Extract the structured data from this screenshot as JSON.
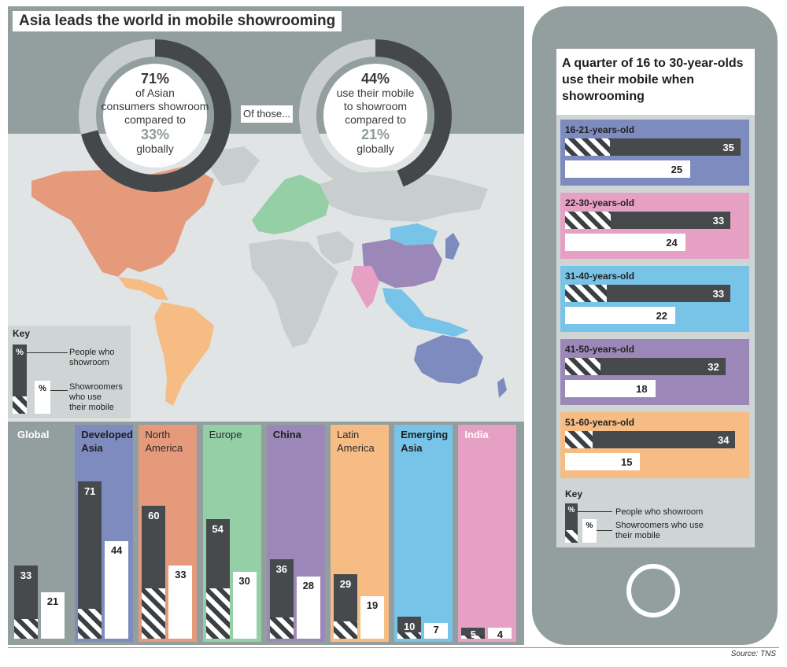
{
  "title": "Asia leads the world in mobile showrooming",
  "donut1": {
    "lines": [
      "of Asian",
      "consumers showroom",
      "compared to"
    ],
    "big": "71%",
    "compare": "33%",
    "tail": "globally",
    "value": 71,
    "compare_value": 33
  },
  "donut2": {
    "lines": [
      "use their mobile",
      "to showroom",
      "compared to"
    ],
    "big": "44%",
    "compare": "21%",
    "tail": "globally",
    "value": 44,
    "compare_value": 21
  },
  "of_those": "Of those...",
  "key_left": {
    "title": "Key",
    "pct": "%",
    "people": "People who",
    "people2": "showroom",
    "users": "Showroomers",
    "users2": "who use",
    "users3": "their mobile"
  },
  "phone_title": "A quarter of 16 to 30-year-olds use their mobile when showrooming",
  "key_right": {
    "title": "Key",
    "pct": "%",
    "people": "People who showroom",
    "users": "Showroomers who use",
    "users2": "their mobile"
  },
  "source": "Source: TNS",
  "colors": {
    "global": "#929f9e",
    "developed_asia": "#7d8bbf",
    "north_america": "#e59a7c",
    "europe": "#94cfa6",
    "china": "#9b88b8",
    "latin_america": "#f6bc84",
    "emerging_asia": "#78c3e8",
    "india": "#e6a0c4"
  },
  "chart_data": [
    {
      "type": "bar",
      "categories": [
        "Global",
        "Developed Asia",
        "North America",
        "Europe",
        "China",
        "Latin America",
        "Emerging Asia",
        "India"
      ],
      "series": [
        {
          "name": "People who showroom",
          "values": [
            33,
            71,
            60,
            54,
            36,
            29,
            10,
            5
          ]
        },
        {
          "name": "Showroomers who use their mobile",
          "values": [
            21,
            44,
            33,
            30,
            28,
            19,
            7,
            4
          ]
        }
      ]
    },
    {
      "type": "bar",
      "title": "A quarter of 16 to 30-year-olds use their mobile when showrooming",
      "categories": [
        "16-21-years-old",
        "22-30-years-old",
        "31-40-years-old",
        "41-50-years-old",
        "51-60-years-old"
      ],
      "series": [
        {
          "name": "People who showroom",
          "values": [
            35,
            33,
            33,
            32,
            34
          ]
        },
        {
          "name": "Showroomers who use their mobile",
          "values": [
            25,
            24,
            22,
            18,
            15
          ]
        }
      ]
    }
  ]
}
